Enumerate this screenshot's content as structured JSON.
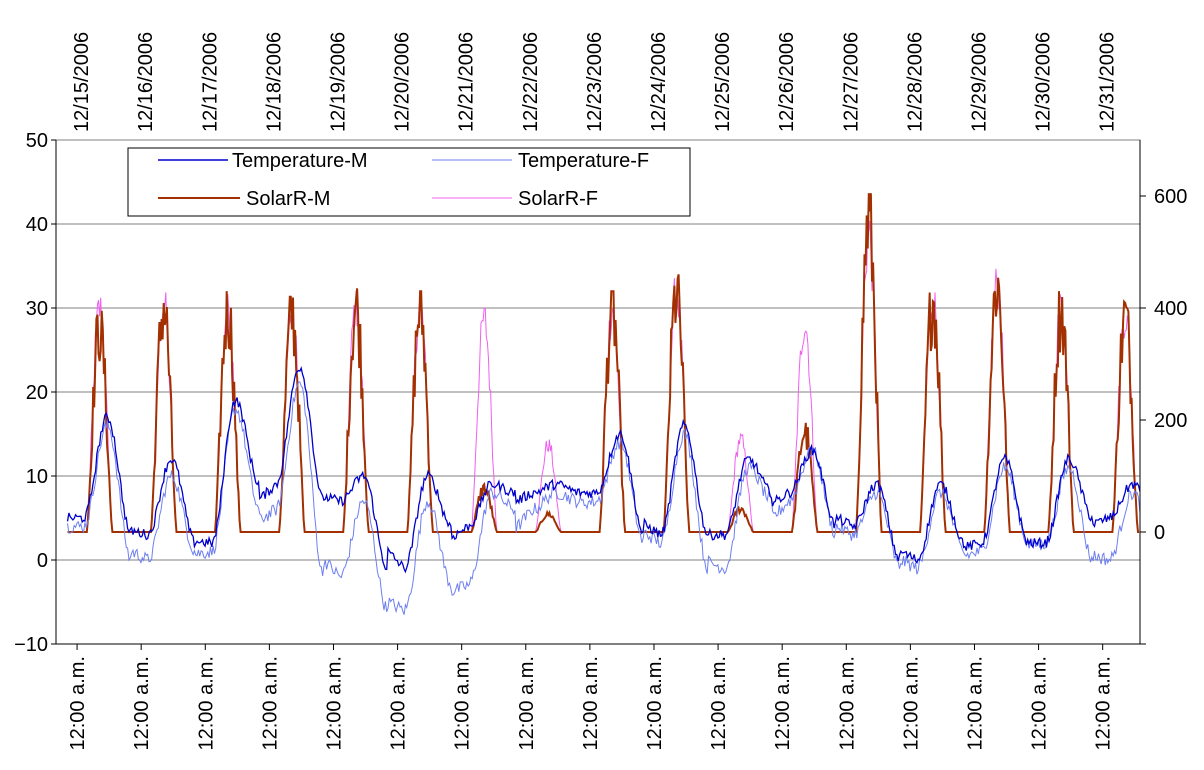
{
  "chart_data": {
    "type": "line",
    "title": "",
    "xlabel": "",
    "ylabel": "",
    "grid": true,
    "legend_position": "top-left",
    "top_axis_labels": [
      "12/15/2006",
      "12/16/2006",
      "12/17/2006",
      "12/18/2006",
      "12/19/2006",
      "12/20/2006",
      "12/21/2006",
      "12/22/2006",
      "12/23/2006",
      "12/24/2006",
      "12/25/2006",
      "12/26/2006",
      "12/27/2006",
      "12/28/2006",
      "12/29/2006",
      "12/30/2006",
      "12/31/2006"
    ],
    "bottom_axis_labels": [
      "12:00 a.m.",
      "12:00 a.m.",
      "12:00 a.m.",
      "12:00 a.m.",
      "12:00 a.m.",
      "12:00 a.m.",
      "12:00 a.m.",
      "12:00 a.m.",
      "12:00 a.m.",
      "12:00 a.m.",
      "12:00 a.m.",
      "12:00 a.m.",
      "12:00 a.m.",
      "12:00 a.m.",
      "12:00 a.m.",
      "12:00 a.m.",
      "12:00 a.m."
    ],
    "x_days": [
      "12/15/2006",
      "12/16/2006",
      "12/17/2006",
      "12/18/2006",
      "12/19/2006",
      "12/20/2006",
      "12/21/2006",
      "12/22/2006",
      "12/23/2006",
      "12/24/2006",
      "12/25/2006",
      "12/26/2006",
      "12/27/2006",
      "12/28/2006",
      "12/29/2006",
      "12/30/2006",
      "12/31/2006"
    ],
    "y_left": {
      "ticks": [
        "-10",
        "0",
        "10",
        "20",
        "30",
        "40",
        "50"
      ],
      "ylim": [
        -10,
        50
      ]
    },
    "y_right": {
      "ticks": [
        "0",
        "200",
        "400",
        "600"
      ],
      "ylim": [
        -200,
        700
      ]
    },
    "series": [
      {
        "name": "Temperature-M",
        "axis": "left",
        "color": "#0000CC",
        "daily_min": [
          5,
          3,
          2,
          9,
          7,
          -1,
          4,
          8,
          8,
          3,
          3,
          8,
          4,
          0,
          2,
          2,
          5
        ],
        "daily_max": [
          17,
          12,
          19,
          23,
          10,
          10,
          9,
          9,
          15,
          16,
          12,
          13,
          9,
          9,
          12,
          12,
          9
        ]
      },
      {
        "name": "Temperature-F",
        "axis": "left",
        "color": "#6D7FF0",
        "daily_min": [
          4,
          0,
          1,
          6,
          -2,
          -6,
          -3,
          6,
          7,
          2,
          -1,
          7,
          3,
          -1,
          1,
          2,
          0
        ],
        "daily_max": [
          16,
          10,
          18,
          21,
          7,
          7,
          8,
          8,
          14,
          15,
          11,
          13,
          8,
          8,
          11,
          11,
          8
        ]
      },
      {
        "name": "SolarR-M",
        "axis": "right",
        "color": "#A33000",
        "daily_peak": [
          395,
          435,
          430,
          420,
          435,
          430,
          85,
          35,
          430,
          460,
          45,
          195,
          605,
          450,
          480,
          430,
          415
        ]
      },
      {
        "name": "SolarR-F",
        "axis": "right",
        "color": "#F060F0",
        "daily_peak": [
          420,
          430,
          425,
          415,
          430,
          425,
          400,
          165,
          420,
          455,
          175,
          395,
          560,
          440,
          470,
          425,
          410
        ]
      }
    ]
  }
}
